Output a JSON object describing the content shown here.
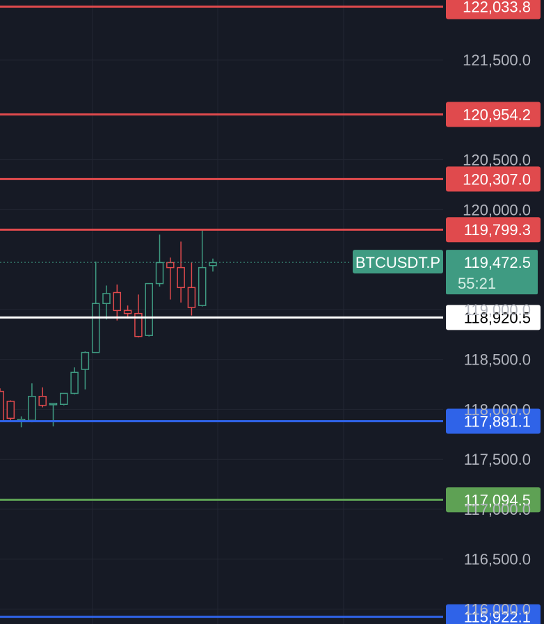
{
  "chart_data": {
    "type": "candlestick",
    "symbol": "BTCUSDT.P",
    "current_price": "119,472.5",
    "countdown": "55:21",
    "y_axis": {
      "min": 115850,
      "max": 122100,
      "tick_labels": [
        "121,500.0",
        "120,500.0",
        "120,000.0",
        "119,000.0",
        "118,500.0",
        "118,000.0",
        "117,500.0",
        "117,000.0",
        "116,500.0",
        "116,000.0"
      ],
      "tick_values": [
        121500,
        120500,
        120000,
        119000,
        118500,
        118000,
        117500,
        117000,
        116500,
        116000
      ]
    },
    "levels": [
      {
        "label": "122,033.8",
        "value": 122033.8,
        "color": "#e04a4d",
        "text_color": "#ffffff"
      },
      {
        "label": "120,954.2",
        "value": 120954.2,
        "color": "#e04a4d",
        "text_color": "#ffffff"
      },
      {
        "label": "120,307.0",
        "value": 120307.0,
        "color": "#e04a4d",
        "text_color": "#ffffff"
      },
      {
        "label": "119,799.3",
        "value": 119799.3,
        "color": "#e04a4d",
        "text_color": "#ffffff"
      },
      {
        "label": "118,920.5",
        "value": 118920.5,
        "color": "#ffffff",
        "text_color": "#000000"
      },
      {
        "label": "117,881.1",
        "value": 117881.1,
        "color": "#2f63e8",
        "text_color": "#ffffff"
      },
      {
        "label": "117,094.5",
        "value": 117094.5,
        "color": "#5ea154",
        "text_color": "#ffffff"
      },
      {
        "label": "115,922.1",
        "value": 115922.1,
        "color": "#2f63e8",
        "text_color": "#ffffff"
      }
    ],
    "candles": [
      {
        "o": 118180,
        "h": 118210,
        "l": 117880,
        "c": 117880
      },
      {
        "o": 118080,
        "h": 118090,
        "l": 117880,
        "c": 117910
      },
      {
        "o": 117890,
        "h": 117930,
        "l": 117820,
        "c": 117900
      },
      {
        "o": 117890,
        "h": 118260,
        "l": 117870,
        "c": 118130
      },
      {
        "o": 118130,
        "h": 118220,
        "l": 118020,
        "c": 118040
      },
      {
        "o": 118060,
        "h": 118060,
        "l": 117830,
        "c": 118060
      },
      {
        "o": 118050,
        "h": 118160,
        "l": 118040,
        "c": 118160
      },
      {
        "o": 118160,
        "h": 118420,
        "l": 118150,
        "c": 118370
      },
      {
        "o": 118400,
        "h": 118580,
        "l": 118200,
        "c": 118570
      },
      {
        "o": 118570,
        "h": 119480,
        "l": 118570,
        "c": 119060
      },
      {
        "o": 119060,
        "h": 119240,
        "l": 118900,
        "c": 119160
      },
      {
        "o": 119170,
        "h": 119250,
        "l": 118890,
        "c": 118990
      },
      {
        "o": 118990,
        "h": 119040,
        "l": 118910,
        "c": 118960
      },
      {
        "o": 118960,
        "h": 119150,
        "l": 118720,
        "c": 118730
      },
      {
        "o": 118740,
        "h": 119250,
        "l": 118730,
        "c": 119260
      },
      {
        "o": 119260,
        "h": 119750,
        "l": 119230,
        "c": 119470
      },
      {
        "o": 119470,
        "h": 119520,
        "l": 119100,
        "c": 119420
      },
      {
        "o": 119420,
        "h": 119680,
        "l": 119070,
        "c": 119220
      },
      {
        "o": 119220,
        "h": 119470,
        "l": 118940,
        "c": 119020
      },
      {
        "o": 119040,
        "h": 119800,
        "l": 119030,
        "c": 119420
      },
      {
        "o": 119440,
        "h": 119510,
        "l": 119380,
        "c": 119470
      }
    ],
    "up_color": "#3f9b82",
    "down_color": "#e04a4d",
    "grid": true
  }
}
